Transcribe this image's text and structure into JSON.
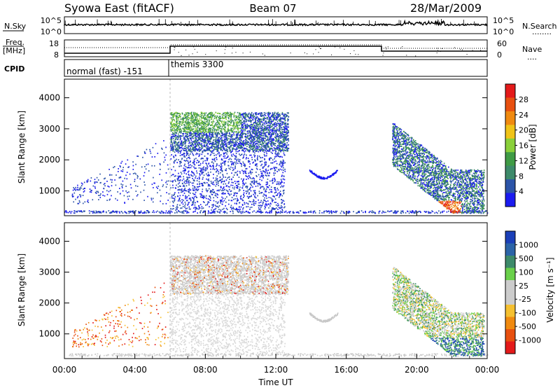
{
  "header": {
    "title": "Syowa East (fitACF)",
    "beam": "Beam 07",
    "date": "28/Mar/2009"
  },
  "strip_labels": {
    "nsky": "N.Sky",
    "nsearch": "N.Search",
    "nsearch_marker": "........",
    "freq_line1": "Freq.",
    "freq_line2": "[MHz]",
    "nave": "Nave",
    "nave_marker": "....",
    "cpid": "CPID"
  },
  "cpid_segments": [
    {
      "label": "normal (fast) -151",
      "start_hour": 0,
      "end_hour": 6
    },
    {
      "label": "themis 3300",
      "start_hour": 6,
      "end_hour": 24
    }
  ],
  "time_axis": {
    "label": "Time UT",
    "ticks": [
      "00:00",
      "04:00",
      "08:00",
      "12:00",
      "16:00",
      "20:00",
      "00:00"
    ],
    "tick_hours": [
      0,
      4,
      8,
      12,
      16,
      20,
      24
    ]
  },
  "colors": {
    "power_scale": [
      "#1b1bf0",
      "#2c54a8",
      "#3d8a6a",
      "#3f9b45",
      "#8ad03a",
      "#f0c318",
      "#f08a10",
      "#e85010",
      "#e41a1a"
    ],
    "velocity_scale": [
      "#e41a1a",
      "#e85010",
      "#f08a10",
      "#f5c030",
      "#cccccc",
      "#cccccc",
      "#6ad04a",
      "#3d8a6a",
      "#2c64a8",
      "#1b3fb8"
    ]
  },
  "chart_data": [
    {
      "type": "line",
      "name_label": "N.Sky / N.Search",
      "yticks_left": [
        "10^5",
        "10^0"
      ],
      "yticks_right": [
        "10^5",
        "10^0"
      ],
      "x_range_hours": [
        0,
        24
      ]
    },
    {
      "type": "line",
      "name_label": "Freq. / Nave",
      "yticks_left": [
        "18",
        "8"
      ],
      "yticks_right": [
        "60",
        "0"
      ],
      "x_range_hours": [
        0,
        24
      ]
    },
    {
      "type": "heatmap",
      "ylabel": "Slant Range [km]",
      "yticks": [
        1000,
        2000,
        3000,
        4000
      ],
      "ylim": [
        200,
        4600
      ],
      "x_range_hours": [
        0,
        24
      ],
      "colorbar_label": "Power [dB]",
      "colorbar_ticks": [
        "28",
        "24",
        "20",
        "16",
        "12",
        "8",
        "4"
      ]
    },
    {
      "type": "heatmap",
      "ylabel": "Slant Range [km]",
      "yticks": [
        1000,
        2000,
        3000,
        4000
      ],
      "ylim": [
        200,
        4600
      ],
      "x_range_hours": [
        0,
        24
      ],
      "colorbar_label": "Velocity [m s⁻¹]",
      "colorbar_ticks": [
        "1000",
        "500",
        "100",
        "25",
        "-25",
        "-100",
        "-500",
        "-1000"
      ]
    }
  ]
}
